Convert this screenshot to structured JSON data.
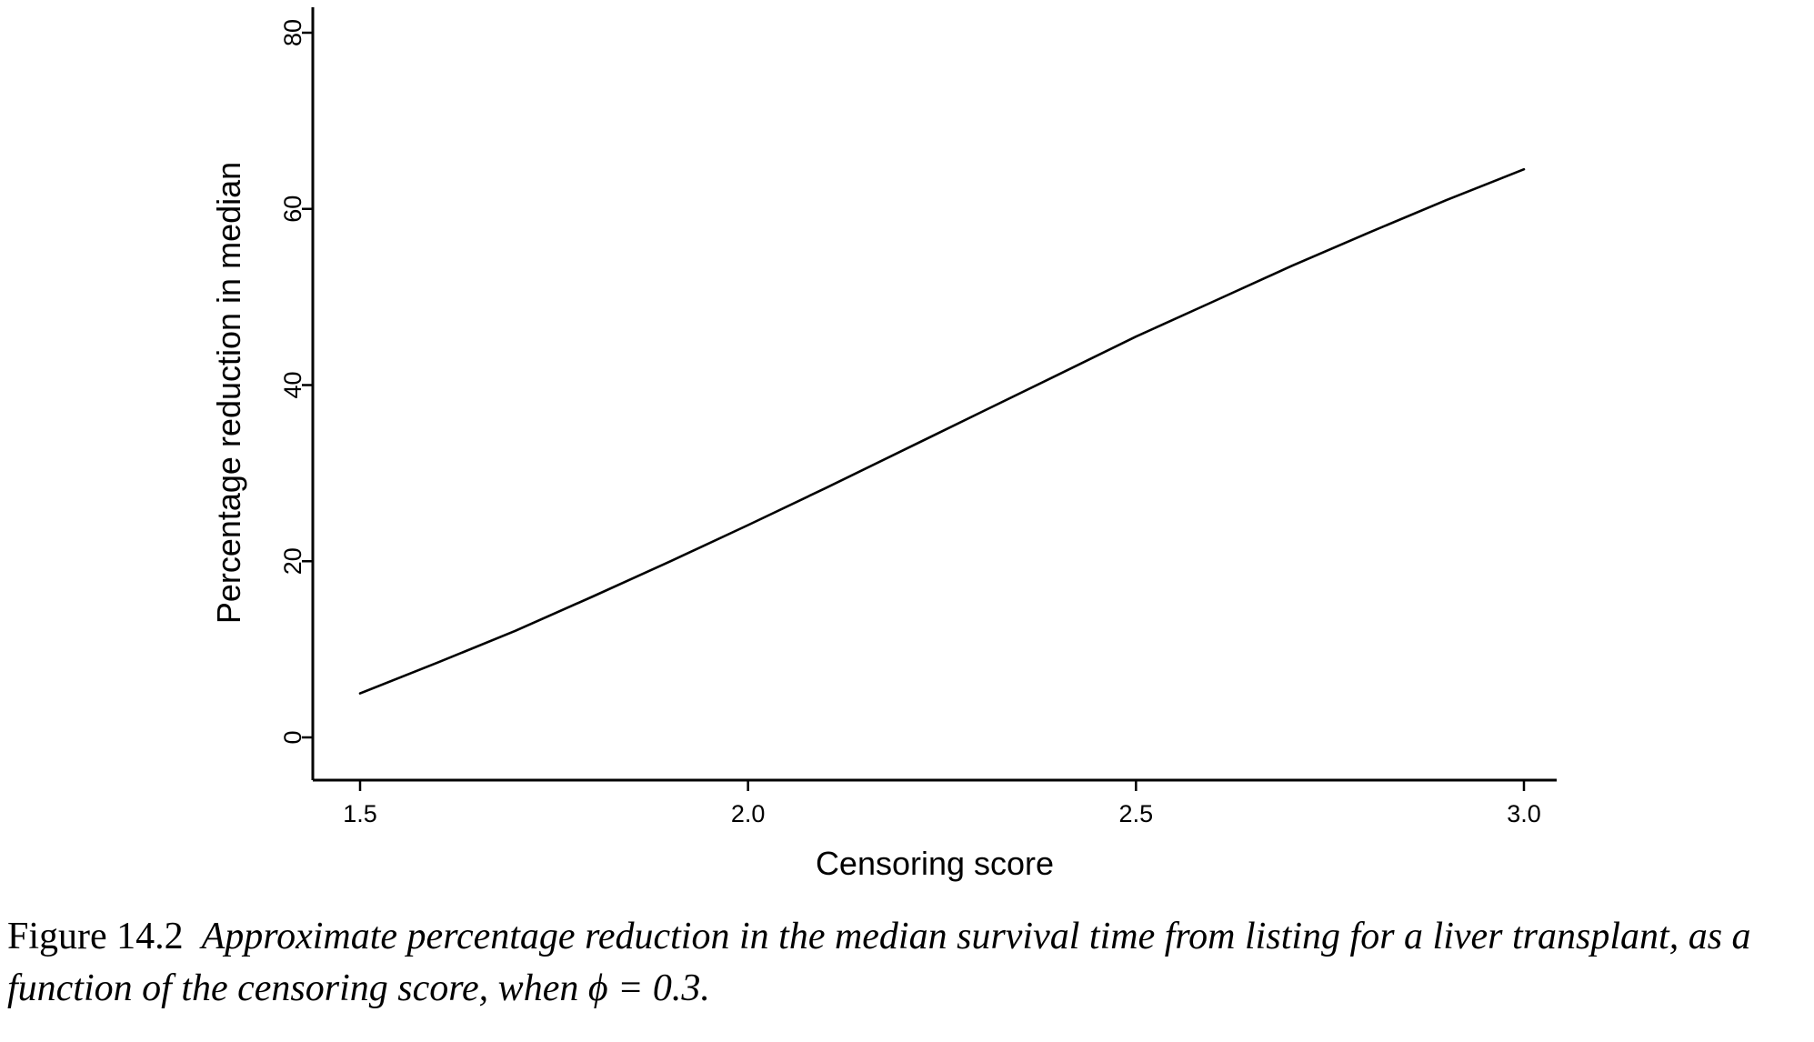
{
  "chart_data": {
    "type": "line",
    "xlabel": "Censoring score",
    "ylabel": "Percentage reduction in median",
    "xlim": [
      1.45,
      3.1
    ],
    "ylim": [
      -5,
      83
    ],
    "xticks": [
      1.5,
      2.0,
      2.5,
      3.0
    ],
    "xtick_labels": [
      "1.5",
      "2.0",
      "2.5",
      "3.0"
    ],
    "yticks": [
      0,
      20,
      40,
      60,
      80
    ],
    "ytick_labels": [
      "0",
      "20",
      "40",
      "60",
      "80"
    ],
    "grid": false,
    "series": [
      {
        "x": [
          1.5,
          1.6,
          1.7,
          1.8,
          1.9,
          2.0,
          2.1,
          2.2,
          2.3,
          2.4,
          2.5,
          2.6,
          2.7,
          2.8,
          2.9,
          3.0
        ],
        "y": [
          5.0,
          8.5,
          12.1,
          16.0,
          20.0,
          24.1,
          28.3,
          32.6,
          36.9,
          41.2,
          45.5,
          49.5,
          53.5,
          57.3,
          61.0,
          64.5
        ],
        "color": "#000000"
      }
    ]
  },
  "caption": {
    "label": "Figure 14.2",
    "text": "Approximate percentage reduction in the median survival time from listing for a liver transplant, as a function of the censoring score, when ϕ = 0.3."
  }
}
